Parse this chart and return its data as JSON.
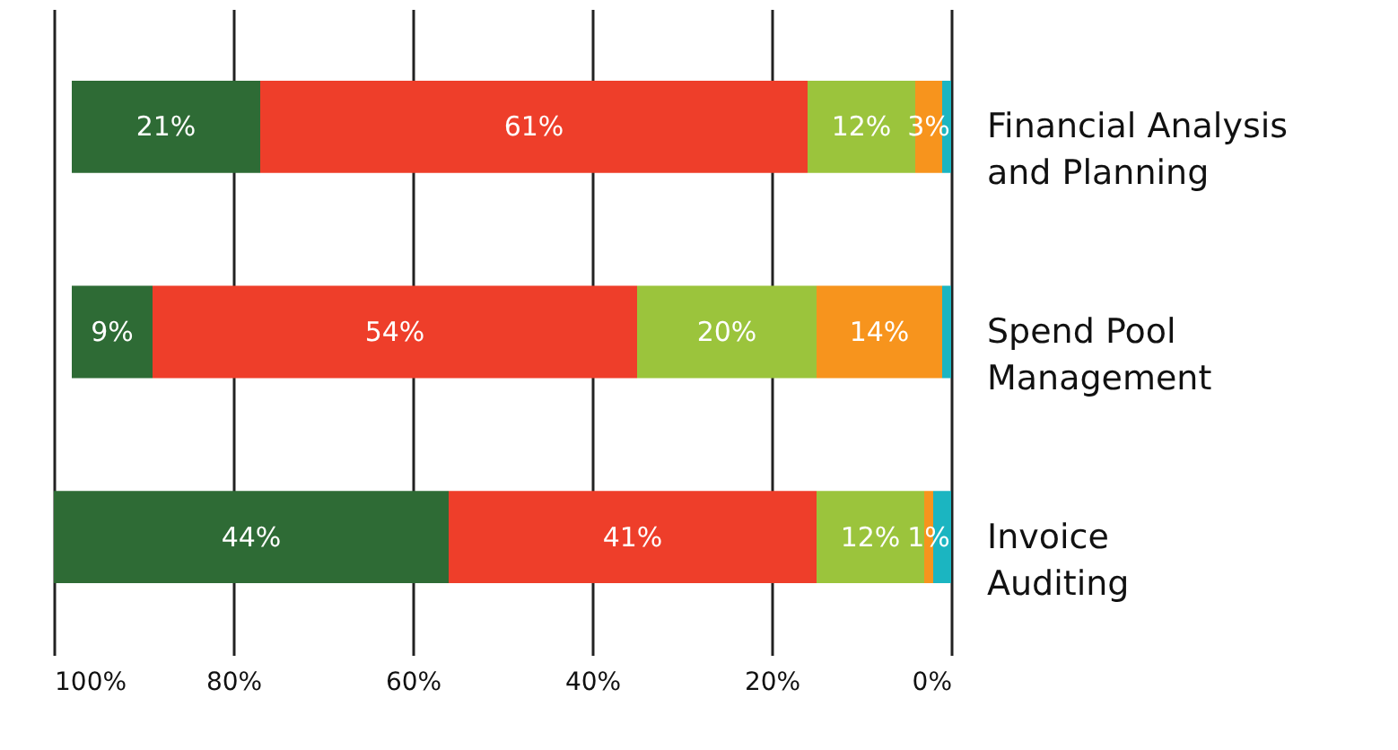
{
  "chart_data": {
    "type": "bar",
    "orientation": "horizontal",
    "stacked": true,
    "categories": [
      "Financial Analysis and Planning",
      "Spend Pool Management",
      "Invoice Auditing"
    ],
    "series": [
      {
        "color": "#1bb5c1",
        "values": [
          1,
          1,
          2
        ],
        "value_labels": [
          null,
          null,
          null
        ]
      },
      {
        "color": "#f7941d",
        "values": [
          3,
          14,
          1
        ],
        "value_labels": [
          "3%",
          "14%",
          "1%"
        ]
      },
      {
        "color": "#9bc43c",
        "values": [
          12,
          20,
          12
        ],
        "value_labels": [
          "12%",
          "20%",
          "12%"
        ]
      },
      {
        "color": "#ee3e2a",
        "values": [
          61,
          54,
          41
        ],
        "value_labels": [
          "61%",
          "54%",
          "41%"
        ]
      },
      {
        "color": "#2e6b35",
        "values": [
          21,
          9,
          44
        ],
        "value_labels": [
          "21%",
          "9%",
          "44%"
        ]
      }
    ],
    "xlim": [
      100,
      0
    ],
    "xticks": [
      {
        "value": 100,
        "label": "100%"
      },
      {
        "value": 80,
        "label": "80%"
      },
      {
        "value": 60,
        "label": "60%"
      },
      {
        "value": 40,
        "label": "40%"
      },
      {
        "value": 20,
        "label": "20%"
      },
      {
        "value": 0,
        "label": "0%"
      }
    ],
    "grid": "x"
  }
}
